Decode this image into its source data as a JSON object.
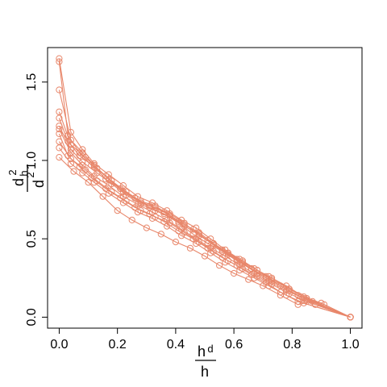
{
  "chart_data": {
    "type": "line",
    "title": "",
    "xlabel": {
      "numerator": "h",
      "numerator_sub": "d",
      "denominator": "h"
    },
    "ylabel": {
      "numerator": "d",
      "numerator_sub": "h",
      "numerator_sup": "2",
      "denominator": "d",
      "denominator_sup": "2"
    },
    "xlim": [
      -0.04,
      1.04
    ],
    "ylim": [
      -0.07,
      1.72
    ],
    "xticks": [
      0.0,
      0.2,
      0.4,
      0.6,
      0.8,
      1.0
    ],
    "xtick_labels": [
      "0.0",
      "0.2",
      "0.4",
      "0.6",
      "0.8",
      "1.0"
    ],
    "yticks": [
      0.0,
      0.5,
      1.0,
      1.5
    ],
    "ytick_labels": [
      "0.0",
      "0.5",
      "1.0",
      "1.5"
    ],
    "grid": false,
    "legend": "none",
    "series_color": "#e8876b",
    "series": [
      {
        "points": [
          [
            0.0,
            1.65
          ],
          [
            0.04,
            1.18
          ],
          [
            0.08,
            1.07
          ],
          [
            0.12,
            0.98
          ],
          [
            0.17,
            0.91
          ],
          [
            0.22,
            0.84
          ],
          [
            0.27,
            0.77
          ],
          [
            0.32,
            0.73
          ],
          [
            0.37,
            0.68
          ],
          [
            0.42,
            0.62
          ],
          [
            0.47,
            0.57
          ],
          [
            0.52,
            0.5
          ],
          [
            0.57,
            0.43
          ],
          [
            0.62,
            0.37
          ],
          [
            0.67,
            0.31
          ],
          [
            0.72,
            0.26
          ],
          [
            0.78,
            0.2
          ],
          [
            0.84,
            0.13
          ],
          [
            0.9,
            0.09
          ],
          [
            1.0,
            0.0
          ]
        ]
      },
      {
        "points": [
          [
            0.0,
            1.63
          ],
          [
            0.03,
            1.16
          ],
          [
            0.07,
            1.05
          ],
          [
            0.11,
            0.97
          ],
          [
            0.16,
            0.9
          ],
          [
            0.21,
            0.82
          ],
          [
            0.26,
            0.76
          ],
          [
            0.31,
            0.71
          ],
          [
            0.36,
            0.67
          ],
          [
            0.41,
            0.61
          ],
          [
            0.46,
            0.56
          ],
          [
            0.51,
            0.49
          ],
          [
            0.56,
            0.43
          ],
          [
            0.61,
            0.37
          ],
          [
            0.66,
            0.31
          ],
          [
            0.71,
            0.26
          ],
          [
            0.76,
            0.2
          ],
          [
            0.82,
            0.14
          ],
          [
            0.88,
            0.08
          ],
          [
            1.0,
            0.0
          ]
        ]
      },
      {
        "points": [
          [
            0.0,
            1.45
          ],
          [
            0.04,
            1.13
          ],
          [
            0.08,
            1.05
          ],
          [
            0.12,
            0.97
          ],
          [
            0.17,
            0.88
          ],
          [
            0.22,
            0.8
          ],
          [
            0.28,
            0.73
          ],
          [
            0.33,
            0.7
          ],
          [
            0.38,
            0.66
          ],
          [
            0.43,
            0.6
          ],
          [
            0.48,
            0.52
          ],
          [
            0.53,
            0.47
          ],
          [
            0.58,
            0.41
          ],
          [
            0.63,
            0.36
          ],
          [
            0.68,
            0.3
          ],
          [
            0.73,
            0.25
          ],
          [
            0.79,
            0.18
          ],
          [
            0.85,
            0.12
          ],
          [
            0.91,
            0.08
          ],
          [
            1.0,
            0.0
          ]
        ]
      },
      {
        "points": [
          [
            0.0,
            1.31
          ],
          [
            0.04,
            1.1
          ],
          [
            0.09,
            1.02
          ],
          [
            0.13,
            0.95
          ],
          [
            0.18,
            0.87
          ],
          [
            0.23,
            0.8
          ],
          [
            0.28,
            0.74
          ],
          [
            0.33,
            0.71
          ],
          [
            0.38,
            0.65
          ],
          [
            0.43,
            0.59
          ],
          [
            0.48,
            0.54
          ],
          [
            0.53,
            0.47
          ],
          [
            0.58,
            0.41
          ],
          [
            0.63,
            0.35
          ],
          [
            0.68,
            0.3
          ],
          [
            0.73,
            0.24
          ],
          [
            0.79,
            0.18
          ],
          [
            0.85,
            0.12
          ],
          [
            1.0,
            0.0
          ]
        ]
      },
      {
        "points": [
          [
            0.0,
            1.27
          ],
          [
            0.03,
            1.12
          ],
          [
            0.07,
            1.03
          ],
          [
            0.12,
            0.96
          ],
          [
            0.16,
            0.88
          ],
          [
            0.21,
            0.82
          ],
          [
            0.26,
            0.76
          ],
          [
            0.31,
            0.7
          ],
          [
            0.36,
            0.66
          ],
          [
            0.41,
            0.6
          ],
          [
            0.46,
            0.53
          ],
          [
            0.51,
            0.47
          ],
          [
            0.56,
            0.42
          ],
          [
            0.61,
            0.36
          ],
          [
            0.66,
            0.31
          ],
          [
            0.71,
            0.25
          ],
          [
            0.77,
            0.19
          ],
          [
            0.83,
            0.13
          ],
          [
            1.0,
            0.0
          ]
        ]
      },
      {
        "points": [
          [
            0.0,
            1.22
          ],
          [
            0.04,
            1.07
          ],
          [
            0.08,
            0.99
          ],
          [
            0.13,
            0.92
          ],
          [
            0.18,
            0.85
          ],
          [
            0.23,
            0.78
          ],
          [
            0.28,
            0.72
          ],
          [
            0.33,
            0.68
          ],
          [
            0.38,
            0.64
          ],
          [
            0.43,
            0.58
          ],
          [
            0.48,
            0.53
          ],
          [
            0.53,
            0.46
          ],
          [
            0.58,
            0.4
          ],
          [
            0.63,
            0.34
          ],
          [
            0.68,
            0.28
          ],
          [
            0.73,
            0.23
          ],
          [
            0.79,
            0.17
          ],
          [
            0.85,
            0.11
          ],
          [
            1.0,
            0.0
          ]
        ]
      },
      {
        "points": [
          [
            0.0,
            1.2
          ],
          [
            0.04,
            1.05
          ],
          [
            0.08,
            0.97
          ],
          [
            0.12,
            0.9
          ],
          [
            0.17,
            0.84
          ],
          [
            0.22,
            0.77
          ],
          [
            0.27,
            0.72
          ],
          [
            0.32,
            0.67
          ],
          [
            0.37,
            0.62
          ],
          [
            0.42,
            0.56
          ],
          [
            0.47,
            0.5
          ],
          [
            0.52,
            0.44
          ],
          [
            0.57,
            0.39
          ],
          [
            0.62,
            0.33
          ],
          [
            0.67,
            0.28
          ],
          [
            0.72,
            0.23
          ],
          [
            0.78,
            0.17
          ],
          [
            0.84,
            0.12
          ],
          [
            1.0,
            0.0
          ]
        ]
      },
      {
        "points": [
          [
            0.0,
            1.17
          ],
          [
            0.03,
            1.03
          ],
          [
            0.07,
            0.96
          ],
          [
            0.11,
            0.89
          ],
          [
            0.16,
            0.82
          ],
          [
            0.21,
            0.76
          ],
          [
            0.26,
            0.7
          ],
          [
            0.31,
            0.66
          ],
          [
            0.36,
            0.61
          ],
          [
            0.41,
            0.55
          ],
          [
            0.46,
            0.5
          ],
          [
            0.51,
            0.44
          ],
          [
            0.56,
            0.38
          ],
          [
            0.61,
            0.33
          ],
          [
            0.66,
            0.27
          ],
          [
            0.71,
            0.22
          ],
          [
            0.76,
            0.16
          ],
          [
            0.82,
            0.1
          ],
          [
            1.0,
            0.0
          ]
        ]
      },
      {
        "points": [
          [
            0.0,
            1.12
          ],
          [
            0.04,
            1.01
          ],
          [
            0.09,
            0.94
          ],
          [
            0.13,
            0.87
          ],
          [
            0.18,
            0.8
          ],
          [
            0.23,
            0.74
          ],
          [
            0.28,
            0.68
          ],
          [
            0.33,
            0.64
          ],
          [
            0.38,
            0.6
          ],
          [
            0.43,
            0.54
          ],
          [
            0.48,
            0.48
          ],
          [
            0.53,
            0.42
          ],
          [
            0.58,
            0.36
          ],
          [
            0.63,
            0.31
          ],
          [
            0.68,
            0.26
          ],
          [
            0.73,
            0.21
          ],
          [
            0.79,
            0.15
          ],
          [
            0.85,
            0.1
          ],
          [
            1.0,
            0.0
          ]
        ]
      },
      {
        "points": [
          [
            0.0,
            1.08
          ],
          [
            0.04,
            0.98
          ],
          [
            0.08,
            0.92
          ],
          [
            0.12,
            0.86
          ],
          [
            0.17,
            0.79
          ],
          [
            0.22,
            0.73
          ],
          [
            0.27,
            0.67
          ],
          [
            0.32,
            0.63
          ],
          [
            0.37,
            0.58
          ],
          [
            0.42,
            0.52
          ],
          [
            0.47,
            0.47
          ],
          [
            0.52,
            0.41
          ],
          [
            0.57,
            0.35
          ],
          [
            0.62,
            0.3
          ],
          [
            0.67,
            0.25
          ],
          [
            0.72,
            0.2
          ],
          [
            0.78,
            0.14
          ],
          [
            0.84,
            0.09
          ],
          [
            1.0,
            0.0
          ]
        ]
      },
      {
        "points": [
          [
            0.0,
            1.02
          ],
          [
            0.05,
            0.93
          ],
          [
            0.1,
            0.86
          ],
          [
            0.15,
            0.77
          ],
          [
            0.2,
            0.68
          ],
          [
            0.25,
            0.62
          ],
          [
            0.3,
            0.57
          ],
          [
            0.35,
            0.53
          ],
          [
            0.4,
            0.48
          ],
          [
            0.45,
            0.44
          ],
          [
            0.5,
            0.39
          ],
          [
            0.55,
            0.33
          ],
          [
            0.6,
            0.28
          ],
          [
            0.65,
            0.24
          ],
          [
            0.7,
            0.2
          ],
          [
            0.76,
            0.14
          ],
          [
            0.82,
            0.08
          ],
          [
            0.87,
            0.1
          ],
          [
            1.0,
            0.0
          ]
        ]
      }
    ]
  }
}
